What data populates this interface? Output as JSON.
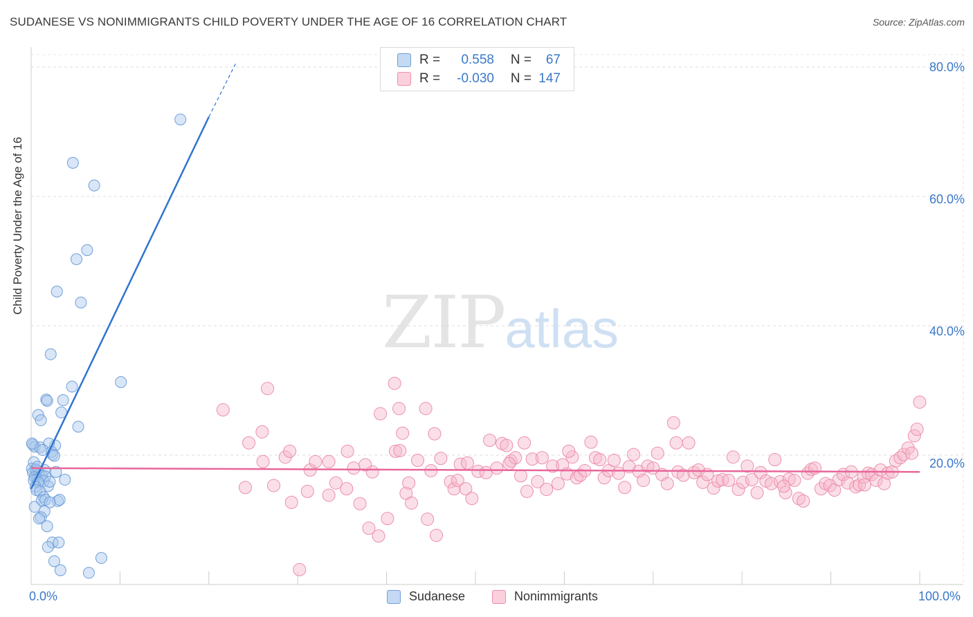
{
  "header": {
    "title": "SUDANESE VS NONIMMIGRANTS CHILD POVERTY UNDER THE AGE OF 16 CORRELATION CHART",
    "source": "Source: ZipAtlas.com"
  },
  "watermark": {
    "zip": "ZIP",
    "atlas": "atlas"
  },
  "legend": {
    "rows": [
      {
        "r_label": "R =",
        "r_value": "0.558",
        "n_label": "N =",
        "n_value": "67",
        "color": "#a9c8ee"
      },
      {
        "r_label": "R =",
        "r_value": "-0.030",
        "n_label": "N =",
        "n_value": "147",
        "color": "#f7b9cb"
      }
    ]
  },
  "bottom_legend": {
    "items": [
      {
        "label": "Sudanese",
        "color": "#a9c8ee"
      },
      {
        "label": "Nonimmigrants",
        "color": "#f7b9cb"
      }
    ]
  },
  "colors": {
    "blue_fill": "#a9c8ee",
    "blue_stroke": "#6f9fd8",
    "blue_line": "#2f74d0",
    "pink_fill": "#f7b9cb",
    "pink_stroke": "#ec8fab",
    "pink_line": "#e8669a",
    "grid": "#dddddd",
    "axis_label": "#3a78c9"
  },
  "chart_data": {
    "type": "scatter",
    "title": "SUDANESE VS NONIMMIGRANTS CHILD POVERTY UNDER THE AGE OF 16 CORRELATION CHART",
    "xlabel": "",
    "ylabel": "Child Poverty Under the Age of 16",
    "xlim": [
      0,
      100
    ],
    "ylim": [
      0,
      80
    ],
    "x_tick_labels": [
      "0.0%",
      "100.0%"
    ],
    "y_ticks": [
      20,
      40,
      60,
      80
    ],
    "y_tick_labels": [
      "20.0%",
      "40.0%",
      "60.0%",
      "80.0%"
    ],
    "grid": true,
    "series": [
      {
        "name": "Sudanese",
        "r": 0.558,
        "n": 67,
        "trend": {
          "x0": 0,
          "y0": 14.8,
          "x1": 20,
          "y1": 72.3,
          "dash_to_x": 23,
          "dash_to_y": 80.5
        },
        "points": [
          [
            16.8,
            71.9
          ],
          [
            4.7,
            65.2
          ],
          [
            7.1,
            61.7
          ],
          [
            6.3,
            51.7
          ],
          [
            5.1,
            50.3
          ],
          [
            2.9,
            45.3
          ],
          [
            5.6,
            43.6
          ],
          [
            2.2,
            35.6
          ],
          [
            10.1,
            31.3
          ],
          [
            4.6,
            30.6
          ],
          [
            1.7,
            28.6
          ],
          [
            1.8,
            28.4
          ],
          [
            3.6,
            28.5
          ],
          [
            3.4,
            26.6
          ],
          [
            0.8,
            26.2
          ],
          [
            1.1,
            25.4
          ],
          [
            5.3,
            24.4
          ],
          [
            0.2,
            21.6
          ],
          [
            0.4,
            21.3
          ],
          [
            2.7,
            21.5
          ],
          [
            1.0,
            21.2
          ],
          [
            2.0,
            21.8
          ],
          [
            1.3,
            20.8
          ],
          [
            2.3,
            20.5
          ],
          [
            2.4,
            20.1
          ],
          [
            2.6,
            19.9
          ],
          [
            0.3,
            18.9
          ],
          [
            0.1,
            17.9
          ],
          [
            0.5,
            17.8
          ],
          [
            0.6,
            17.6
          ],
          [
            1.5,
            17.7
          ],
          [
            0.2,
            17.3
          ],
          [
            0.9,
            17.0
          ],
          [
            1.2,
            16.9
          ],
          [
            0.4,
            16.6
          ],
          [
            0.7,
            16.3
          ],
          [
            1.6,
            16.7
          ],
          [
            0.3,
            16.1
          ],
          [
            1.4,
            16.0
          ],
          [
            3.8,
            16.2
          ],
          [
            0.8,
            15.8
          ],
          [
            1.9,
            15.2
          ],
          [
            0.5,
            15.1
          ],
          [
            2.1,
            15.9
          ],
          [
            0.6,
            14.6
          ],
          [
            1.0,
            14.4
          ],
          [
            1.4,
            13.5
          ],
          [
            1.2,
            13.0
          ],
          [
            1.6,
            13.1
          ],
          [
            3.0,
            12.9
          ],
          [
            3.2,
            13.1
          ],
          [
            2.1,
            12.7
          ],
          [
            0.4,
            12.0
          ],
          [
            1.5,
            11.3
          ],
          [
            1.1,
            10.4
          ],
          [
            0.9,
            10.2
          ],
          [
            1.8,
            9.0
          ],
          [
            2.4,
            6.5
          ],
          [
            3.1,
            6.5
          ],
          [
            1.9,
            5.8
          ],
          [
            7.9,
            4.1
          ],
          [
            2.6,
            3.6
          ],
          [
            3.3,
            2.2
          ],
          [
            6.5,
            1.8
          ],
          [
            0.1,
            21.8
          ],
          [
            0.7,
            18.2
          ],
          [
            2.8,
            17.4
          ]
        ]
      },
      {
        "name": "Nonimmigrants",
        "r": -0.03,
        "n": 147,
        "trend": {
          "x0": 0,
          "y0": 18.0,
          "x1": 100,
          "y1": 17.4
        },
        "points": [
          [
            21.6,
            27.0
          ],
          [
            26.6,
            30.3
          ],
          [
            24.5,
            21.9
          ],
          [
            26.0,
            23.6
          ],
          [
            26.1,
            19.0
          ],
          [
            24.1,
            15.0
          ],
          [
            27.3,
            15.3
          ],
          [
            28.6,
            19.7
          ],
          [
            29.1,
            20.6
          ],
          [
            29.3,
            12.7
          ],
          [
            30.2,
            2.3
          ],
          [
            31.1,
            14.4
          ],
          [
            31.4,
            17.7
          ],
          [
            32.0,
            19.0
          ],
          [
            33.5,
            19.0
          ],
          [
            33.5,
            13.8
          ],
          [
            34.3,
            15.7
          ],
          [
            35.5,
            14.8
          ],
          [
            35.6,
            20.6
          ],
          [
            36.3,
            18.0
          ],
          [
            37.0,
            12.5
          ],
          [
            38.0,
            8.7
          ],
          [
            38.4,
            17.4
          ],
          [
            39.1,
            7.5
          ],
          [
            39.3,
            26.4
          ],
          [
            40.1,
            10.2
          ],
          [
            40.9,
            31.1
          ],
          [
            41.0,
            20.6
          ],
          [
            41.4,
            27.2
          ],
          [
            41.8,
            23.4
          ],
          [
            42.2,
            14.1
          ],
          [
            42.5,
            15.7
          ],
          [
            42.8,
            12.6
          ],
          [
            43.5,
            19.2
          ],
          [
            44.4,
            27.2
          ],
          [
            44.6,
            10.1
          ],
          [
            45.0,
            17.6
          ],
          [
            45.4,
            23.3
          ],
          [
            45.6,
            7.6
          ],
          [
            46.1,
            19.5
          ],
          [
            47.2,
            15.9
          ],
          [
            47.6,
            14.8
          ],
          [
            48.0,
            16.1
          ],
          [
            48.3,
            18.6
          ],
          [
            48.9,
            14.8
          ],
          [
            49.6,
            13.3
          ],
          [
            50.3,
            17.5
          ],
          [
            51.2,
            17.3
          ],
          [
            51.6,
            22.3
          ],
          [
            52.4,
            18.0
          ],
          [
            53.0,
            21.8
          ],
          [
            53.5,
            21.5
          ],
          [
            54.0,
            19.1
          ],
          [
            54.5,
            19.6
          ],
          [
            55.1,
            16.8
          ],
          [
            55.5,
            21.9
          ],
          [
            55.8,
            14.4
          ],
          [
            56.4,
            19.4
          ],
          [
            57.0,
            15.9
          ],
          [
            57.5,
            19.6
          ],
          [
            58.0,
            14.7
          ],
          [
            58.7,
            18.3
          ],
          [
            59.3,
            15.6
          ],
          [
            59.8,
            18.5
          ],
          [
            60.3,
            17.1
          ],
          [
            60.9,
            19.7
          ],
          [
            61.4,
            16.5
          ],
          [
            61.8,
            16.9
          ],
          [
            62.3,
            17.6
          ],
          [
            63.0,
            22.0
          ],
          [
            63.5,
            19.6
          ],
          [
            64.0,
            19.3
          ],
          [
            64.5,
            16.5
          ],
          [
            65.0,
            17.6
          ],
          [
            65.6,
            19.2
          ],
          [
            66.1,
            17.2
          ],
          [
            66.8,
            15.0
          ],
          [
            67.3,
            18.2
          ],
          [
            67.8,
            20.1
          ],
          [
            68.4,
            17.5
          ],
          [
            68.9,
            16.1
          ],
          [
            69.4,
            18.3
          ],
          [
            70.0,
            18.0
          ],
          [
            70.5,
            20.3
          ],
          [
            71.0,
            17.0
          ],
          [
            71.6,
            15.6
          ],
          [
            72.3,
            25.0
          ],
          [
            72.8,
            17.4
          ],
          [
            73.4,
            16.9
          ],
          [
            74.0,
            21.9
          ],
          [
            74.6,
            17.3
          ],
          [
            75.1,
            17.7
          ],
          [
            75.6,
            15.8
          ],
          [
            76.1,
            17.0
          ],
          [
            76.8,
            14.9
          ],
          [
            77.3,
            16.0
          ],
          [
            77.8,
            16.2
          ],
          [
            78.5,
            16.1
          ],
          [
            79.0,
            19.7
          ],
          [
            79.6,
            14.7
          ],
          [
            80.1,
            15.8
          ],
          [
            80.6,
            18.3
          ],
          [
            81.1,
            16.2
          ],
          [
            81.7,
            14.2
          ],
          [
            82.1,
            17.3
          ],
          [
            82.7,
            16.0
          ],
          [
            83.3,
            15.6
          ],
          [
            83.7,
            19.3
          ],
          [
            84.3,
            15.9
          ],
          [
            84.9,
            14.2
          ],
          [
            85.3,
            16.3
          ],
          [
            85.9,
            16.1
          ],
          [
            86.4,
            13.3
          ],
          [
            86.9,
            12.9
          ],
          [
            87.4,
            17.2
          ],
          [
            87.8,
            17.8
          ],
          [
            88.2,
            18.0
          ],
          [
            88.9,
            14.8
          ],
          [
            89.4,
            15.6
          ],
          [
            89.9,
            15.3
          ],
          [
            90.4,
            14.6
          ],
          [
            90.9,
            16.2
          ],
          [
            91.4,
            17.0
          ],
          [
            91.9,
            15.7
          ],
          [
            92.3,
            17.4
          ],
          [
            92.8,
            15.1
          ],
          [
            93.2,
            15.4
          ],
          [
            93.7,
            16.6
          ],
          [
            94.2,
            17.2
          ],
          [
            94.6,
            17.0
          ],
          [
            95.1,
            16.1
          ],
          [
            95.6,
            17.7
          ],
          [
            96.0,
            15.6
          ],
          [
            96.4,
            17.2
          ],
          [
            96.9,
            17.4
          ],
          [
            97.3,
            19.1
          ],
          [
            97.8,
            19.6
          ],
          [
            98.2,
            20.1
          ],
          [
            98.7,
            21.1
          ],
          [
            99.1,
            20.3
          ],
          [
            99.4,
            23.0
          ],
          [
            99.7,
            24.0
          ],
          [
            100.0,
            28.2
          ],
          [
            72.6,
            21.9
          ],
          [
            60.5,
            20.6
          ],
          [
            53.8,
            18.7
          ],
          [
            41.5,
            20.7
          ],
          [
            37.6,
            18.5
          ],
          [
            49.1,
            18.8
          ],
          [
            84.7,
            15.2
          ],
          [
            93.8,
            15.4
          ]
        ]
      }
    ]
  },
  "axis": {
    "ylabel": "Child Poverty Under the Age of 16",
    "y_tick_labels": [
      "80.0%",
      "60.0%",
      "40.0%",
      "20.0%"
    ],
    "x_left": "0.0%",
    "x_right": "100.0%"
  }
}
